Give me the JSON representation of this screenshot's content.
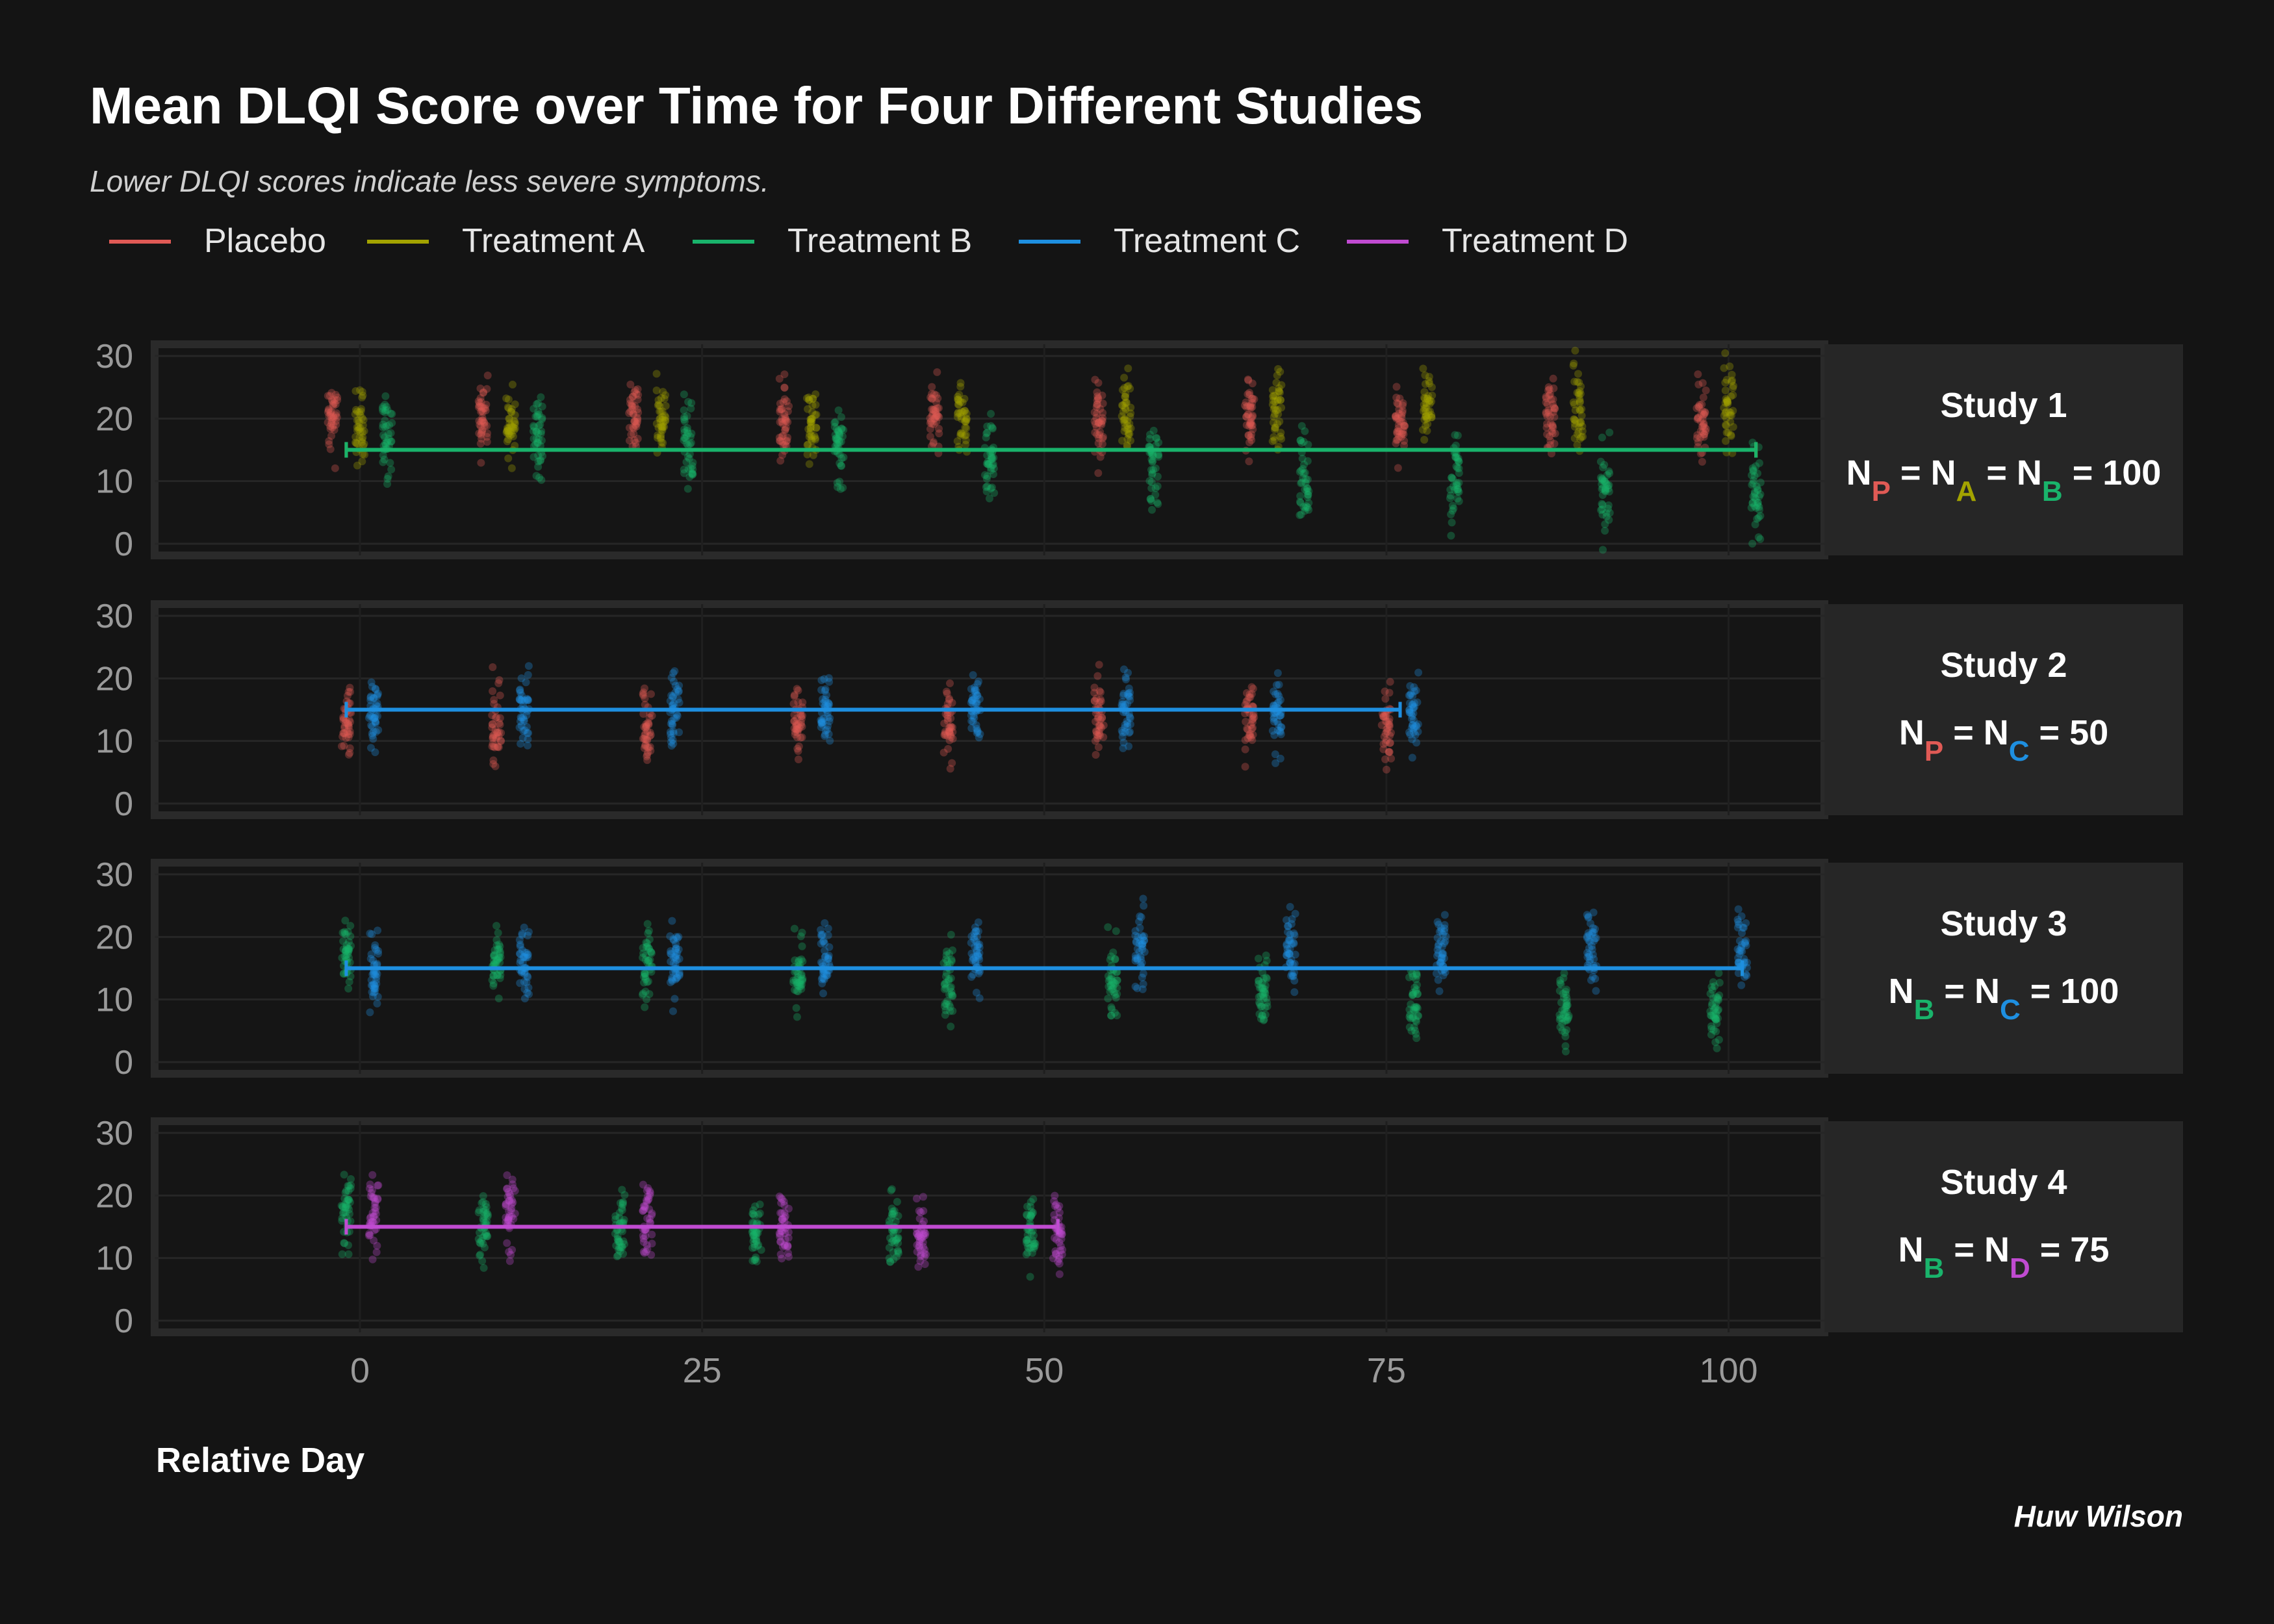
{
  "title": "Mean DLQI Score over Time for Four Different Studies",
  "subtitle": "Lower DLQI scores indicate less severe symptoms.",
  "caption": "Huw Wilson",
  "colors": {
    "background": "#141414",
    "panel": "#1b1b1b",
    "panel_border": "#2a2a2a",
    "strip": "#262626",
    "grid": "#262626"
  },
  "chart_data": {
    "type": "scatter",
    "xlabel": "Relative Day",
    "ylabel": "",
    "xlim": [
      -15,
      107
    ],
    "ylim": [
      0,
      30
    ],
    "x_ticks": [
      0,
      25,
      50,
      75,
      100
    ],
    "y_ticks": [
      0,
      10,
      20,
      30
    ],
    "legend_position": "top-left",
    "legend": [
      {
        "name": "Placebo",
        "color": "#e05a55"
      },
      {
        "name": "Treatment A",
        "color": "#a3a300"
      },
      {
        "name": "Treatment B",
        "color": "#19b36b"
      },
      {
        "name": "Treatment C",
        "color": "#1e8fe0"
      },
      {
        "name": "Treatment D",
        "color": "#c04bd1"
      }
    ],
    "panels": [
      {
        "strip_title": "Study 1",
        "n_label": [
          {
            "t": "N"
          },
          {
            "t": "P",
            "sub": true,
            "color": "#e05a55"
          },
          {
            "t": " = N"
          },
          {
            "t": "A",
            "sub": true,
            "color": "#a3a300"
          },
          {
            "t": " = N"
          },
          {
            "t": "B",
            "sub": true,
            "color": "#19b36b"
          },
          {
            "t": " = 100"
          }
        ],
        "mean_line": {
          "x_start": -1,
          "x_end": 102,
          "y": 15,
          "colors": [
            "#e05a55",
            "#a3a300",
            "#19b36b"
          ]
        },
        "groups": [
          {
            "name": "Placebo",
            "color": "#e05a55",
            "days": [
              -2,
              9,
              20,
              31,
              42,
              54,
              65,
              76,
              87,
              98
            ],
            "center": [
              20,
              20,
              20,
              20,
              20,
              20,
              20,
              20,
              20,
              20
            ],
            "spread": 5
          },
          {
            "name": "Treatment A",
            "color": "#a3a300",
            "days": [
              0,
              11,
              22,
              33,
              44,
              56,
              67,
              78,
              89,
              100
            ],
            "center": [
              18,
              18,
              19,
              19,
              20,
              21,
              21,
              22,
              22,
              22
            ],
            "spread": 5
          },
          {
            "name": "Treatment B",
            "color": "#19b36b",
            "days": [
              2,
              13,
              24,
              35,
              46,
              58,
              69,
              80,
              91,
              102
            ],
            "center": [
              18,
              17,
              16,
              15,
              14,
              12,
              11,
              10,
              9,
              8
            ],
            "spread": 6
          }
        ]
      },
      {
        "strip_title": "Study 2",
        "n_label": [
          {
            "t": "N"
          },
          {
            "t": "P",
            "sub": true,
            "color": "#e05a55"
          },
          {
            "t": " = N"
          },
          {
            "t": "C",
            "sub": true,
            "color": "#1e8fe0"
          },
          {
            "t": " = 50"
          }
        ],
        "mean_line": {
          "x_start": -1,
          "x_end": 76,
          "y": 15,
          "colors": [
            "#e05a55",
            "#1e8fe0"
          ]
        },
        "groups": [
          {
            "name": "Placebo",
            "color": "#e05a55",
            "days": [
              -1,
              10,
              21,
              32,
              43,
              54,
              65,
              75
            ],
            "center": [
              13,
              13,
              13,
              13,
              13,
              13,
              13,
              13
            ],
            "spread": 5
          },
          {
            "name": "Treatment C",
            "color": "#1e8fe0",
            "days": [
              1,
              12,
              23,
              34,
              45,
              56,
              67,
              77
            ],
            "center": [
              14,
              15,
              15,
              15,
              15,
              15,
              14,
              14
            ],
            "spread": 5
          }
        ]
      },
      {
        "strip_title": "Study 3",
        "n_label": [
          {
            "t": "N"
          },
          {
            "t": "B",
            "sub": true,
            "color": "#19b36b"
          },
          {
            "t": " = N"
          },
          {
            "t": "C",
            "sub": true,
            "color": "#1e8fe0"
          },
          {
            "t": " = 100"
          }
        ],
        "mean_line": {
          "x_start": -1,
          "x_end": 101,
          "y": 15,
          "colors": [
            "#19b36b",
            "#1e8fe0"
          ]
        },
        "groups": [
          {
            "name": "Treatment B",
            "color": "#19b36b",
            "days": [
              -1,
              10,
              21,
              32,
              43,
              55,
              66,
              77,
              88,
              99
            ],
            "center": [
              17,
              17,
              16,
              14,
              13,
              13,
              11,
              10,
              9,
              8
            ],
            "spread": 5
          },
          {
            "name": "Treatment C",
            "color": "#1e8fe0",
            "days": [
              1,
              12,
              23,
              34,
              45,
              57,
              68,
              79,
              90,
              101
            ],
            "center": [
              15,
              16,
              16,
              16,
              17,
              18,
              18,
              18,
              18,
              18
            ],
            "spread": 5
          }
        ]
      },
      {
        "strip_title": "Study 4",
        "n_label": [
          {
            "t": "N"
          },
          {
            "t": "B",
            "sub": true,
            "color": "#19b36b"
          },
          {
            "t": " = N"
          },
          {
            "t": "D",
            "sub": true,
            "color": "#c04bd1"
          },
          {
            "t": " = 75"
          }
        ],
        "mean_line": {
          "x_start": -1,
          "x_end": 51,
          "y": 15,
          "colors": [
            "#19b36b",
            "#c04bd1"
          ]
        },
        "groups": [
          {
            "name": "Treatment B",
            "color": "#19b36b",
            "days": [
              -1,
              9,
              19,
              29,
              39,
              49
            ],
            "center": [
              17,
              16,
              15,
              14,
              14,
              14
            ],
            "spread": 5
          },
          {
            "name": "Treatment D",
            "color": "#c04bd1",
            "days": [
              1,
              11,
              21,
              31,
              41,
              51
            ],
            "center": [
              17,
              17,
              16,
              15,
              14,
              14
            ],
            "spread": 5
          }
        ]
      }
    ]
  }
}
